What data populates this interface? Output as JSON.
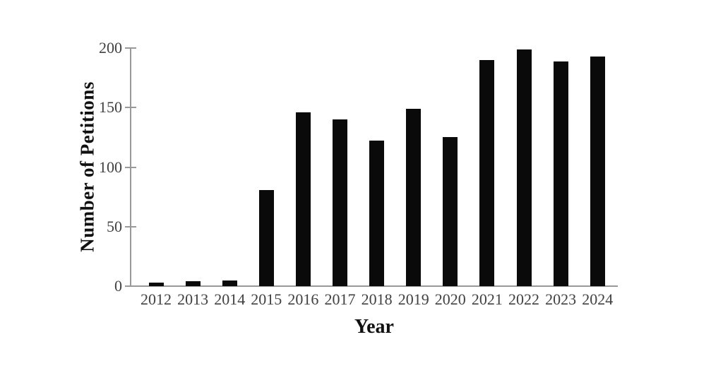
{
  "chart_data": {
    "type": "bar",
    "title": "",
    "xlabel": "Year",
    "ylabel": "Number of Petitions",
    "categories": [
      "2012",
      "2013",
      "2014",
      "2015",
      "2016",
      "2017",
      "2018",
      "2019",
      "2020",
      "2021",
      "2022",
      "2023",
      "2024"
    ],
    "values": [
      3,
      4,
      5,
      81,
      146,
      140,
      122,
      149,
      125,
      190,
      199,
      189,
      193
    ],
    "ylim": [
      0,
      200
    ],
    "yticks": [
      0,
      50,
      100,
      150,
      200
    ],
    "grid": false,
    "legend": "none",
    "bar_color": "#0a0a0a",
    "axis_color": "#999999",
    "tick_label_color": "#414141"
  }
}
